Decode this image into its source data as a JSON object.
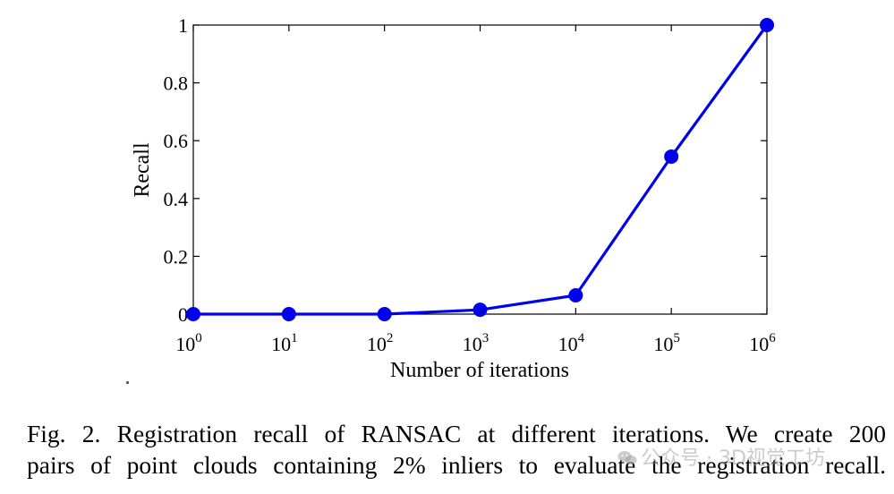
{
  "chart_data": {
    "type": "line",
    "title": "",
    "xlabel": "Number of iterations",
    "ylabel": "Recall",
    "x_scale": "log",
    "x": [
      1,
      10,
      100,
      1000,
      10000,
      100000,
      1000000
    ],
    "x_tick_base": "10",
    "x_tick_exponents": [
      "0",
      "1",
      "2",
      "3",
      "4",
      "5",
      "6"
    ],
    "xlim": [
      1,
      1000000
    ],
    "ylim": [
      0,
      1
    ],
    "y_ticks": [
      0,
      0.2,
      0.4,
      0.6,
      0.8,
      1
    ],
    "y_tick_labels": [
      "0",
      "0.2",
      "0.4",
      "0.6",
      "0.8",
      "1"
    ],
    "series": [
      {
        "name": "RANSAC",
        "values": [
          0.0,
          0.0,
          0.0,
          0.015,
          0.065,
          0.545,
          1.0
        ]
      }
    ],
    "line_color": "#0000ee",
    "grid": false,
    "legend": "none"
  },
  "caption": {
    "line1": "Fig. 2.  Registration recall of RANSAC at different iterations. We create 200",
    "line2": "pairs of point clouds containing 2% inliers to evaluate the registration recall."
  },
  "watermark": {
    "text": "公众号 · 3D视觉工坊",
    "color": "#a0a0a0"
  }
}
